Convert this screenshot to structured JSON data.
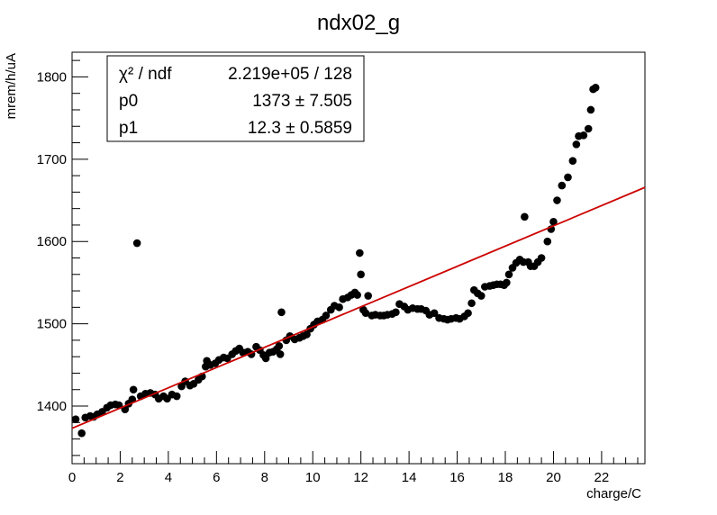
{
  "chart_data": {
    "type": "scatter",
    "title": "ndx02_g",
    "xlabel": "charge/C",
    "ylabel": "mrem/h/uA",
    "xlim": [
      0,
      23.8
    ],
    "ylim": [
      1330,
      1830
    ],
    "x_ticks": [
      "0",
      "2",
      "4",
      "6",
      "8",
      "10",
      "12",
      "14",
      "16",
      "18",
      "20",
      "22"
    ],
    "y_ticks": [
      "1400",
      "1500",
      "1600",
      "1700",
      "1800"
    ],
    "grid": false,
    "legend": "none",
    "marker_color": "#000000",
    "fit_color": "#cc0000",
    "fit_line": {
      "p0": 1373,
      "p1": 12.3
    },
    "stats": {
      "chi2_label": "χ² / ndf",
      "chi2_value": "2.219e+05 / 128",
      "p0_label": "p0",
      "p0_value": "1373 ± 7.505",
      "p1_label": "p1",
      "p1_value": "12.3 ± 0.5859"
    },
    "points": [
      [
        0.15,
        1384
      ],
      [
        0.4,
        1367
      ],
      [
        0.55,
        1386
      ],
      [
        0.75,
        1388
      ],
      [
        0.9,
        1387
      ],
      [
        1.05,
        1390
      ],
      [
        1.25,
        1393
      ],
      [
        1.45,
        1398
      ],
      [
        1.6,
        1401
      ],
      [
        1.8,
        1402
      ],
      [
        1.95,
        1401
      ],
      [
        2.2,
        1396
      ],
      [
        2.35,
        1403
      ],
      [
        2.5,
        1408
      ],
      [
        2.55,
        1420
      ],
      [
        2.7,
        1598
      ],
      [
        2.85,
        1412
      ],
      [
        3.05,
        1415
      ],
      [
        3.25,
        1416
      ],
      [
        3.45,
        1414
      ],
      [
        3.6,
        1409
      ],
      [
        3.8,
        1412
      ],
      [
        3.95,
        1409
      ],
      [
        4.15,
        1414
      ],
      [
        4.35,
        1412
      ],
      [
        4.55,
        1424
      ],
      [
        4.7,
        1430
      ],
      [
        4.9,
        1425
      ],
      [
        5.05,
        1427
      ],
      [
        5.25,
        1432
      ],
      [
        5.4,
        1436
      ],
      [
        5.55,
        1448
      ],
      [
        5.6,
        1455
      ],
      [
        5.75,
        1450
      ],
      [
        5.95,
        1452
      ],
      [
        6.1,
        1456
      ],
      [
        6.3,
        1459
      ],
      [
        6.45,
        1458
      ],
      [
        6.65,
        1463
      ],
      [
        6.8,
        1467
      ],
      [
        6.95,
        1470
      ],
      [
        7.1,
        1465
      ],
      [
        7.3,
        1466
      ],
      [
        7.45,
        1463
      ],
      [
        7.65,
        1472
      ],
      [
        7.8,
        1468
      ],
      [
        7.95,
        1462
      ],
      [
        8.05,
        1458
      ],
      [
        8.2,
        1465
      ],
      [
        8.35,
        1466
      ],
      [
        8.5,
        1469
      ],
      [
        8.6,
        1473
      ],
      [
        8.65,
        1463
      ],
      [
        8.7,
        1514
      ],
      [
        8.9,
        1480
      ],
      [
        9.05,
        1485
      ],
      [
        9.25,
        1481
      ],
      [
        9.45,
        1483
      ],
      [
        9.6,
        1485
      ],
      [
        9.75,
        1487
      ],
      [
        9.9,
        1494
      ],
      [
        10.05,
        1499
      ],
      [
        10.2,
        1503
      ],
      [
        10.4,
        1505
      ],
      [
        10.55,
        1510
      ],
      [
        10.75,
        1517
      ],
      [
        10.9,
        1522
      ],
      [
        11.1,
        1520
      ],
      [
        11.25,
        1530
      ],
      [
        11.45,
        1532
      ],
      [
        11.6,
        1535
      ],
      [
        11.75,
        1538
      ],
      [
        11.85,
        1535
      ],
      [
        11.95,
        1586
      ],
      [
        12.0,
        1560
      ],
      [
        12.1,
        1517
      ],
      [
        12.2,
        1513
      ],
      [
        12.3,
        1534
      ],
      [
        12.45,
        1510
      ],
      [
        12.6,
        1511
      ],
      [
        12.8,
        1510
      ],
      [
        12.95,
        1510
      ],
      [
        13.1,
        1511
      ],
      [
        13.3,
        1512
      ],
      [
        13.45,
        1514
      ],
      [
        13.6,
        1524
      ],
      [
        13.8,
        1521
      ],
      [
        13.95,
        1517
      ],
      [
        14.15,
        1519
      ],
      [
        14.35,
        1518
      ],
      [
        14.5,
        1518
      ],
      [
        14.7,
        1516
      ],
      [
        14.85,
        1511
      ],
      [
        15.05,
        1513
      ],
      [
        15.25,
        1507
      ],
      [
        15.45,
        1506
      ],
      [
        15.6,
        1505
      ],
      [
        15.75,
        1506
      ],
      [
        15.95,
        1507
      ],
      [
        16.1,
        1506
      ],
      [
        16.3,
        1509
      ],
      [
        16.45,
        1513
      ],
      [
        16.6,
        1525
      ],
      [
        16.7,
        1541
      ],
      [
        16.85,
        1537
      ],
      [
        17.0,
        1534
      ],
      [
        17.15,
        1545
      ],
      [
        17.35,
        1546
      ],
      [
        17.5,
        1547
      ],
      [
        17.65,
        1548
      ],
      [
        17.8,
        1548
      ],
      [
        17.95,
        1547
      ],
      [
        18.05,
        1550
      ],
      [
        18.15,
        1560
      ],
      [
        18.3,
        1568
      ],
      [
        18.45,
        1574
      ],
      [
        18.6,
        1578
      ],
      [
        18.75,
        1575
      ],
      [
        18.8,
        1630
      ],
      [
        18.95,
        1575
      ],
      [
        19.05,
        1570
      ],
      [
        19.2,
        1570
      ],
      [
        19.35,
        1575
      ],
      [
        19.5,
        1580
      ],
      [
        19.75,
        1600
      ],
      [
        19.9,
        1615
      ],
      [
        20.0,
        1624
      ],
      [
        20.15,
        1650
      ],
      [
        20.35,
        1668
      ],
      [
        20.6,
        1678
      ],
      [
        20.8,
        1698
      ],
      [
        20.95,
        1718
      ],
      [
        21.05,
        1728
      ],
      [
        21.25,
        1729
      ],
      [
        21.45,
        1737
      ],
      [
        21.55,
        1760
      ],
      [
        21.65,
        1785
      ],
      [
        21.75,
        1787
      ]
    ]
  }
}
